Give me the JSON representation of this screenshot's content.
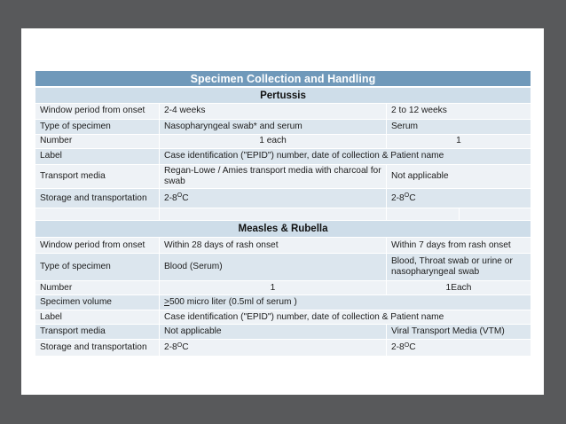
{
  "frame": {
    "background": "#58595b",
    "slide_background": "#ffffff"
  },
  "table": {
    "title": "Specimen Collection and Handling",
    "colors": {
      "title_bar": "#7099ba",
      "title_text": "#ffffff",
      "section_header": "#cedde9",
      "band_dark": "#dce6ee",
      "band_light": "#eef2f6",
      "body_text": "#1c1c1c"
    },
    "sections": [
      {
        "header": "Pertussis",
        "rows": [
          {
            "label": "Window period from onset",
            "values": [
              "2-4 weeks",
              "2 to 12 weeks"
            ]
          },
          {
            "label": "Type of specimen",
            "values": [
              "Nasopharyngeal swab* and serum",
              "Serum"
            ]
          },
          {
            "label": "Number",
            "values": [
              "1 each",
              "1"
            ],
            "center": true
          },
          {
            "label": "Label",
            "merged": "Case identification (\"EPID\") number, date of collection & Patient name"
          },
          {
            "label": "Transport media",
            "values": [
              "Regan-Lowe / Amies transport media with charcoal for swab",
              "Not applicable"
            ]
          },
          {
            "label": "Storage and transportation",
            "values": [
              [
                {
                  "t": "2-8 "
                },
                {
                  "t": "O",
                  "sup": true
                },
                {
                  "t": "C"
                }
              ],
              [
                {
                  "t": "2-8 "
                },
                {
                  "t": "O",
                  "sup": true
                },
                {
                  "t": "C"
                }
              ]
            ]
          },
          {
            "spacer": true
          }
        ]
      },
      {
        "header": "Measles & Rubella",
        "rows": [
          {
            "label": "Window period from onset",
            "values": [
              "Within 28 days of rash onset",
              "Within 7 days from rash onset"
            ]
          },
          {
            "label": "Type of specimen",
            "values": [
              "Blood (Serum)",
              "Blood, Throat swab or urine or nasopharyngeal swab"
            ]
          },
          {
            "label": "Number",
            "values": [
              "1",
              "1Each"
            ],
            "center": true
          },
          {
            "label": "Specimen volume",
            "merged": [
              {
                "t": ">",
                "u": true
              },
              {
                "t": "500 micro liter (0.5ml of serum )"
              }
            ]
          },
          {
            "label": "Label",
            "merged": "Case identification (\"EPID\") number, date of collection & Patient name"
          },
          {
            "label": "Transport media",
            "values": [
              "Not applicable",
              "Viral Transport Media (VTM)"
            ]
          },
          {
            "label": "Storage and transportation",
            "values": [
              [
                {
                  "t": "2-8 "
                },
                {
                  "t": "O",
                  "sup": true
                },
                {
                  "t": "C"
                }
              ],
              [
                {
                  "t": "2-8 "
                },
                {
                  "t": "O",
                  "sup": true
                },
                {
                  "t": "C"
                }
              ]
            ]
          }
        ]
      }
    ]
  }
}
